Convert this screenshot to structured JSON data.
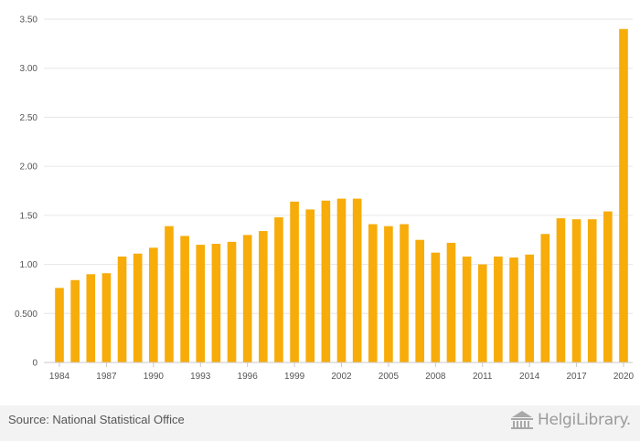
{
  "chart_data": {
    "type": "bar",
    "categories": [
      "1984",
      "1985",
      "1986",
      "1987",
      "1988",
      "1989",
      "1990",
      "1991",
      "1992",
      "1993",
      "1994",
      "1995",
      "1996",
      "1997",
      "1998",
      "1999",
      "2000",
      "2001",
      "2002",
      "2003",
      "2004",
      "2005",
      "2006",
      "2007",
      "2008",
      "2009",
      "2010",
      "2011",
      "2012",
      "2013",
      "2014",
      "2015",
      "2016",
      "2017",
      "2018",
      "2019",
      "2020"
    ],
    "values": [
      0.76,
      0.84,
      0.9,
      0.91,
      1.08,
      1.11,
      1.17,
      1.39,
      1.29,
      1.2,
      1.21,
      1.23,
      1.3,
      1.34,
      1.48,
      1.64,
      1.56,
      1.65,
      1.67,
      1.67,
      1.41,
      1.39,
      1.41,
      1.25,
      1.12,
      1.22,
      1.08,
      1.0,
      1.08,
      1.07,
      1.1,
      1.31,
      1.47,
      1.46,
      1.46,
      1.54,
      3.4
    ],
    "x_tick_labels": [
      "1984",
      "1987",
      "1990",
      "1993",
      "1996",
      "1999",
      "2002",
      "2005",
      "2008",
      "2011",
      "2014",
      "2017",
      "2020"
    ],
    "y_ticks": [
      0,
      0.5,
      1.0,
      1.5,
      2.0,
      2.5,
      3.0,
      3.5
    ],
    "y_tick_labels": [
      "0",
      "0.500",
      "1.00",
      "1.50",
      "2.00",
      "2.50",
      "3.00",
      "3.50"
    ],
    "ylim": [
      0,
      3.5
    ],
    "bar_color": "#f7ac0a",
    "grid": true,
    "title": "",
    "xlabel": "",
    "ylabel": ""
  },
  "footer": {
    "source": "Source: National Statistical Office",
    "logo_text": "HelgiLibrary."
  }
}
